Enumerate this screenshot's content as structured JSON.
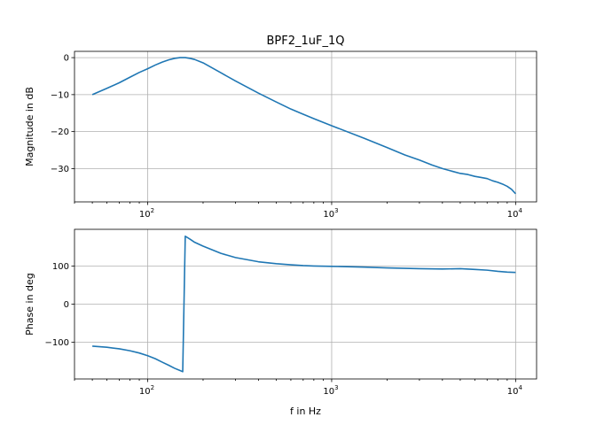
{
  "chart_data": [
    {
      "type": "line",
      "title": "BPF2_1uF_1Q",
      "xlabel": "",
      "ylabel": "Magnitude in dB",
      "xscale": "log",
      "xlim": [
        40,
        13000
      ],
      "ylim": [
        -39,
        1.7
      ],
      "grid": true,
      "x_ticks": [
        {
          "value": 100,
          "base": "10",
          "exp": "2"
        },
        {
          "value": 1000,
          "base": "10",
          "exp": "3"
        },
        {
          "value": 10000,
          "base": "10",
          "exp": "4"
        }
      ],
      "y_ticks": [
        {
          "value": 0,
          "label": "0"
        },
        {
          "value": -10,
          "label": "−10"
        },
        {
          "value": -20,
          "label": "−20"
        },
        {
          "value": -30,
          "label": "−30"
        }
      ],
      "color": "#1f77b4",
      "series": [
        {
          "x": [
            50,
            60,
            70,
            80,
            90,
            100,
            110,
            120,
            130,
            140,
            150,
            160,
            170,
            180,
            200,
            250,
            300,
            400,
            500,
            600,
            700,
            800,
            1000,
            1500,
            2000,
            2500,
            3000,
            3500,
            4000,
            4500,
            5000,
            5500,
            6000,
            6500,
            7000,
            7500,
            8000,
            8500,
            9000,
            9500,
            10000
          ],
          "y": [
            -10,
            -8.3,
            -6.8,
            -5.3,
            -4.0,
            -3.0,
            -2.0,
            -1.2,
            -0.6,
            -0.2,
            0.0,
            0.0,
            -0.2,
            -0.5,
            -1.4,
            -4.1,
            -6.3,
            -9.6,
            -12.0,
            -13.9,
            -15.3,
            -16.5,
            -18.4,
            -21.8,
            -24.3,
            -26.3,
            -27.7,
            -29.0,
            -30.0,
            -30.7,
            -31.3,
            -31.6,
            -32.1,
            -32.4,
            -32.7,
            -33.3,
            -33.7,
            -34.2,
            -34.8,
            -35.6,
            -36.8
          ]
        }
      ]
    },
    {
      "type": "line",
      "title": "",
      "xlabel": "f in Hz",
      "ylabel": "Phase in deg",
      "xscale": "log",
      "xlim": [
        40,
        13000
      ],
      "ylim": [
        -196,
        196
      ],
      "grid": true,
      "x_ticks": [
        {
          "value": 100,
          "base": "10",
          "exp": "2"
        },
        {
          "value": 1000,
          "base": "10",
          "exp": "3"
        },
        {
          "value": 10000,
          "base": "10",
          "exp": "4"
        }
      ],
      "y_ticks": [
        {
          "value": 100,
          "label": "100"
        },
        {
          "value": 0,
          "label": "0"
        },
        {
          "value": -100,
          "label": "−100"
        }
      ],
      "color": "#1f77b4",
      "series": [
        {
          "x": [
            50,
            60,
            70,
            80,
            90,
            100,
            110,
            120,
            130,
            140,
            150,
            155,
            160,
            170,
            180,
            200,
            250,
            300,
            400,
            500,
            600,
            700,
            800,
            1000,
            1500,
            2000,
            3000,
            4000,
            5000,
            6000,
            7000,
            8000,
            9000,
            10000
          ],
          "y": [
            -110,
            -113,
            -117,
            -122,
            -128,
            -135,
            -143,
            -152,
            -160,
            -168,
            -174,
            -177,
            178,
            170,
            162,
            152,
            133,
            122,
            111,
            106,
            103,
            101,
            100,
            99,
            97,
            95,
            93,
            92,
            93,
            91,
            89,
            86,
            84,
            83
          ]
        }
      ]
    }
  ]
}
